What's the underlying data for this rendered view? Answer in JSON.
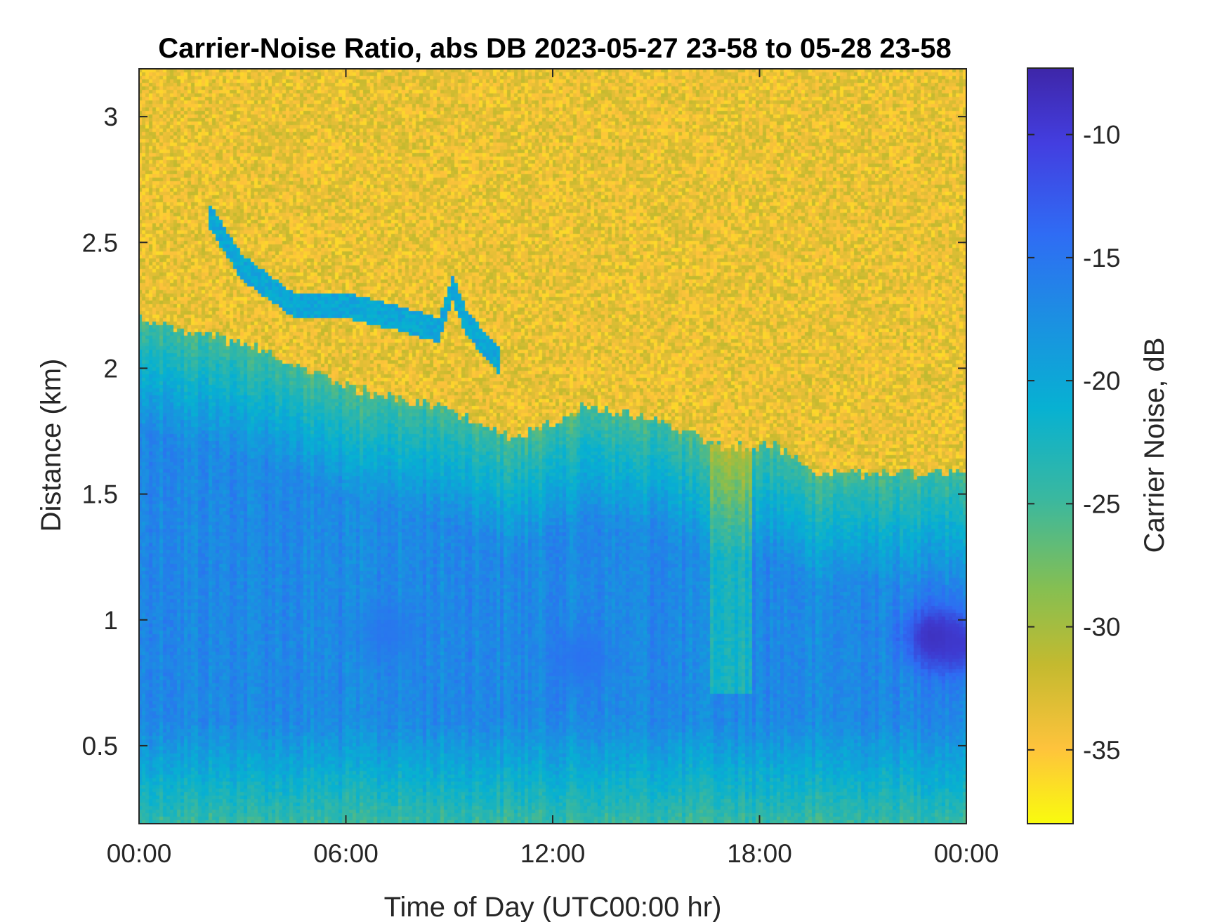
{
  "chart_data": {
    "type": "heatmap",
    "title": "Carrier-Noise Ratio, abs DB 2023-05-27 23-58 to 05-28 23-58",
    "xlabel": "Time of Day (UTC00:00 hr)",
    "ylabel": "Distance (km)",
    "colorbar_label": "Carrier Noise, dB",
    "x_tick_labels": [
      "00:00",
      "06:00",
      "12:00",
      "18:00",
      "00:00"
    ],
    "x_tick_hours": [
      0,
      6,
      12,
      18,
      24
    ],
    "xlim_hours": [
      0,
      24
    ],
    "y_ticks": [
      0.5,
      1,
      1.5,
      2,
      2.5,
      3
    ],
    "y_tick_labels": [
      "0.5",
      "1",
      "1.5",
      "2",
      "2.5",
      "3"
    ],
    "ylim": [
      0.19,
      3.19
    ],
    "colorbar_ticks": [
      -10,
      -15,
      -20,
      -25,
      -30,
      -35
    ],
    "colorbar_tick_labels": [
      "-10",
      "-15",
      "-20",
      "-25",
      "-30",
      "-35"
    ],
    "clim": [
      -38,
      -7.3
    ],
    "colormap": [
      "#f9fb0e",
      "#fec33c",
      "#c4ba2f",
      "#86bf51",
      "#3ab89f",
      "#07b1d2",
      "#1c8fe2",
      "#2f6cf4",
      "#3e3bd1",
      "#3e26a8"
    ],
    "colormap_direction": "top=-7.3 dark purple, bottom=-38 yellow",
    "grid": false,
    "layers": {
      "noise_floor_db": -33.5,
      "aerosol_top_km": [
        {
          "hour": 0,
          "km": 2.2
        },
        {
          "hour": 3,
          "km": 2.1
        },
        {
          "hour": 6,
          "km": 1.93
        },
        {
          "hour": 9,
          "km": 1.83
        },
        {
          "hour": 11,
          "km": 1.72
        },
        {
          "hour": 13,
          "km": 1.85
        },
        {
          "hour": 15,
          "km": 1.8
        },
        {
          "hour": 17,
          "km": 1.68
        },
        {
          "hour": 18.5,
          "km": 1.7
        },
        {
          "hour": 19.5,
          "km": 1.58
        },
        {
          "hour": 22,
          "km": 1.58
        },
        {
          "hour": 24,
          "km": 1.58
        }
      ],
      "cloud_layer": [
        {
          "hour": 2.0,
          "km": 2.62
        },
        {
          "hour": 3.0,
          "km": 2.4
        },
        {
          "hour": 4.5,
          "km": 2.25
        },
        {
          "hour": 6.0,
          "km": 2.25
        },
        {
          "hour": 7.5,
          "km": 2.2
        },
        {
          "hour": 8.7,
          "km": 2.15
        },
        {
          "hour": 9.1,
          "km": 2.32
        },
        {
          "hour": 9.5,
          "km": 2.18
        },
        {
          "hour": 10.5,
          "km": 2.02
        }
      ],
      "core_signal_db": -17,
      "strong_patches": [
        {
          "hour": 7.2,
          "km": 0.95,
          "db": -15
        },
        {
          "hour": 12.8,
          "km": 0.85,
          "db": -14.5
        },
        {
          "hour": 23.1,
          "km": 0.93,
          "db": -8
        },
        {
          "hour": 23.9,
          "km": 0.9,
          "db": -10
        }
      ]
    }
  }
}
